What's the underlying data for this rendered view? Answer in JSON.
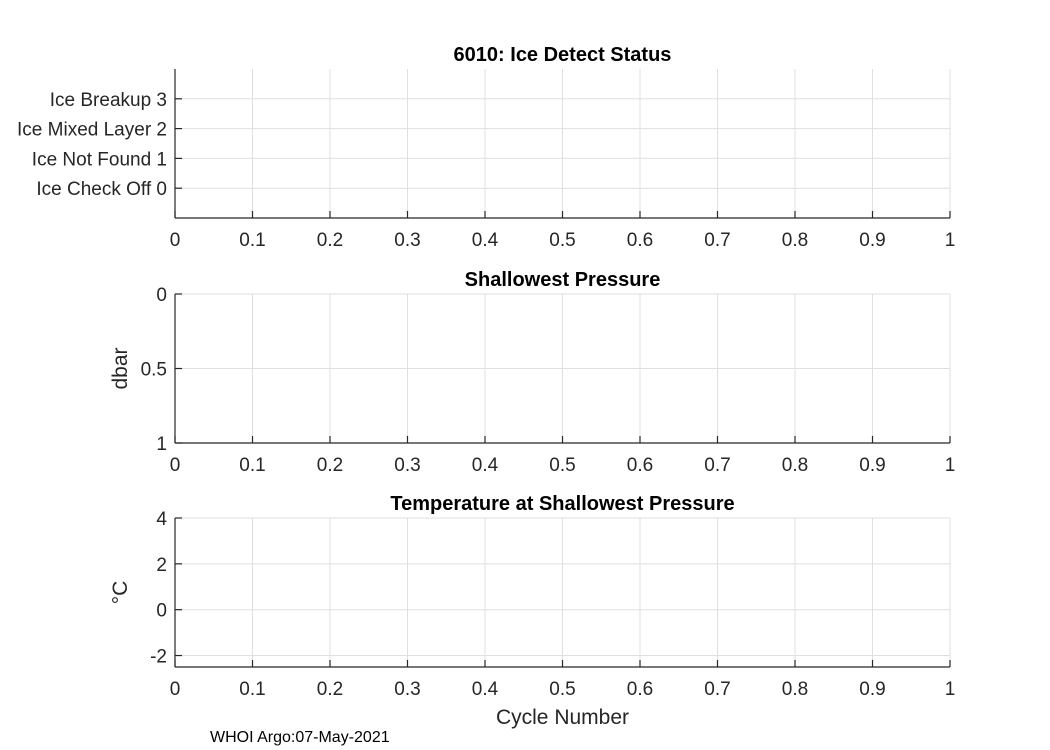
{
  "chart_data": [
    {
      "type": "line",
      "title": "6010: Ice Detect Status",
      "xlabel": "",
      "ylabel": "",
      "xlim": [
        0,
        1
      ],
      "ylim": [
        -1,
        4
      ],
      "y_reversed": false,
      "grid": true,
      "series": [],
      "xticks": [
        0,
        0.1,
        0.2,
        0.3,
        0.4,
        0.5,
        0.6,
        0.7,
        0.8,
        0.9,
        1
      ],
      "xtick_labels": [
        "0",
        "0.1",
        "0.2",
        "0.3",
        "0.4",
        "0.5",
        "0.6",
        "0.7",
        "0.8",
        "0.9",
        "1"
      ],
      "yticks": [
        0,
        1,
        2,
        3
      ],
      "ytick_labels": [
        "Ice Check Off 0",
        "Ice Not Found 1",
        "Ice Mixed Layer 2",
        "Ice Breakup 3"
      ]
    },
    {
      "type": "line",
      "title": "Shallowest Pressure",
      "xlabel": "",
      "ylabel": "dbar",
      "xlim": [
        0,
        1
      ],
      "ylim": [
        0,
        1
      ],
      "y_reversed": true,
      "grid": true,
      "series": [],
      "xticks": [
        0,
        0.1,
        0.2,
        0.3,
        0.4,
        0.5,
        0.6,
        0.7,
        0.8,
        0.9,
        1
      ],
      "xtick_labels": [
        "0",
        "0.1",
        "0.2",
        "0.3",
        "0.4",
        "0.5",
        "0.6",
        "0.7",
        "0.8",
        "0.9",
        "1"
      ],
      "yticks": [
        0,
        0.5,
        1
      ],
      "ytick_labels": [
        "0",
        "0.5",
        "1"
      ]
    },
    {
      "type": "line",
      "title": "Temperature at Shallowest Pressure",
      "xlabel": "Cycle Number",
      "ylabel": "°C",
      "xlim": [
        0,
        1
      ],
      "ylim": [
        -2.5,
        4
      ],
      "y_reversed": false,
      "grid": true,
      "series": [],
      "xticks": [
        0,
        0.1,
        0.2,
        0.3,
        0.4,
        0.5,
        0.6,
        0.7,
        0.8,
        0.9,
        1
      ],
      "xtick_labels": [
        "0",
        "0.1",
        "0.2",
        "0.3",
        "0.4",
        "0.5",
        "0.6",
        "0.7",
        "0.8",
        "0.9",
        "1"
      ],
      "yticks": [
        -2,
        0,
        2,
        4
      ],
      "ytick_labels": [
        "-2",
        "0",
        "2",
        "4"
      ]
    }
  ],
  "footer": "WHOI Argo:07-May-2021",
  "colors": {
    "axis": "#262626",
    "grid": "#dfdfdf",
    "title": "#000000"
  }
}
